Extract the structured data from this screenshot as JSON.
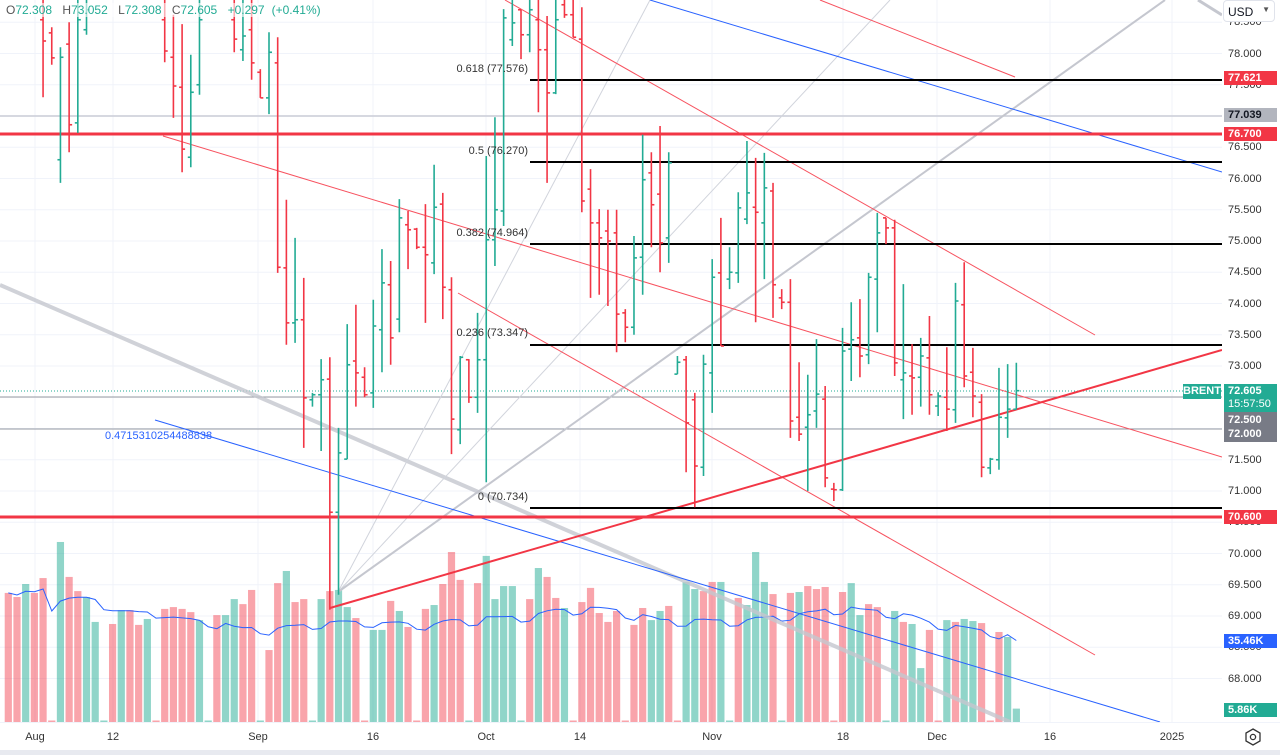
{
  "header": {
    "o_label": "O",
    "o": "72.308",
    "h_label": "H",
    "h": "73.052",
    "l_label": "L",
    "l": "72.308",
    "c_label": "C",
    "c": "72.605",
    "change": "+0.297",
    "change_pct": "(+0.41%)"
  },
  "currency": "USD",
  "symbol_tag": "BRENT",
  "price_tags": {
    "fib_top": "77.621",
    "gray_line": "77.039",
    "resistance": "76.700",
    "last_price": "72.605",
    "countdown": "15:57:50",
    "line_a": "72.500",
    "line_b": "72.000",
    "support": "70.600",
    "volume_ma": "35.46K",
    "volume": "5.86K"
  },
  "fib_labels": [
    "0.618 (77.576)",
    "0.5 (76.270)",
    "0.382 (74.964)",
    "0.236 (73.347)",
    "0 (70.734)"
  ],
  "measure_note": "0.4715310254488838",
  "colors": {
    "up": "#22ab94",
    "down": "#f23645",
    "vol_up": "rgba(34,171,148,0.5)",
    "vol_down": "rgba(242,54,69,0.45)",
    "ma": "#2962ff",
    "level": "#f23645"
  },
  "chart_data": {
    "type": "ohlc",
    "title": "BRENT",
    "ylim": [
      67.6,
      78.86
    ],
    "y_ticks": [
      "78.500",
      "78.000",
      "77.500",
      "77.000",
      "76.500",
      "76.000",
      "75.500",
      "75.000",
      "74.500",
      "74.000",
      "73.500",
      "73.000",
      "72.500",
      "72.000",
      "71.500",
      "71.000",
      "70.500",
      "70.000",
      "69.500",
      "69.000",
      "68.500",
      "68.000"
    ],
    "x_ticks": [
      "Aug",
      "12",
      "Sep",
      "16",
      "Oct",
      "14",
      "Nov",
      "18",
      "Dec",
      "16",
      "2025"
    ],
    "levels": {
      "resistance": 76.7,
      "support": 70.6,
      "gray": 77.039,
      "line_a": 72.5,
      "line_b": 72.0,
      "last": 72.605
    },
    "fibonacci": [
      {
        "ratio": 0.618,
        "price": 77.576
      },
      {
        "ratio": 0.5,
        "price": 76.27
      },
      {
        "ratio": 0.382,
        "price": 74.964
      },
      {
        "ratio": 0.236,
        "price": 73.347
      },
      {
        "ratio": 0,
        "price": 70.734
      }
    ],
    "bar_segments": [
      {
        "start": 4,
        "bars": [
          [
            78.54,
            79.0,
            77.3,
            78.2
          ],
          [
            78.33,
            78.42,
            77.82,
            77.93
          ],
          [
            76.3,
            78.1,
            75.93,
            77.94
          ],
          [
            78.15,
            78.5,
            76.42,
            76.86
          ],
          [
            76.89,
            79.0,
            76.73,
            78.54
          ],
          [
            78.38,
            79.0,
            78.3,
            78.7
          ]
        ]
      },
      {
        "start": 18,
        "bars": [
          [
            78.54,
            79.0,
            77.86,
            78.04
          ],
          [
            77.94,
            78.62,
            76.97,
            77.48
          ],
          [
            77.46,
            78.47,
            76.1,
            76.47
          ],
          [
            76.34,
            77.98,
            76.18,
            77.38
          ],
          [
            77.5,
            79.0,
            77.34,
            78.54
          ]
        ]
      },
      {
        "start": 26,
        "bars": [
          [
            78.54,
            79.0,
            78.02,
            78.23
          ],
          [
            78.06,
            79.0,
            77.88,
            78.28
          ],
          [
            78.38,
            79.0,
            77.58,
            77.85
          ],
          [
            77.7,
            77.75,
            77.29,
            77.29
          ],
          [
            77.29,
            78.34,
            77.03,
            78.02
          ],
          [
            77.85,
            78.26,
            74.49,
            74.58
          ],
          [
            74.57,
            75.66,
            73.34,
            73.69
          ],
          [
            73.69,
            75.05,
            73.37,
            73.74
          ],
          [
            73.74,
            74.41,
            71.69,
            72.49
          ],
          [
            72.46,
            72.57,
            72.35,
            72.54
          ],
          [
            72.54,
            73.11,
            71.64,
            72.78
          ],
          [
            72.79,
            73.14,
            69.1,
            70.66
          ],
          [
            70.66,
            72.01,
            69.34,
            71.61
          ],
          [
            71.51,
            73.67,
            71.51,
            73.02
          ],
          [
            73.08,
            73.98,
            72.35,
            72.89
          ],
          [
            72.82,
            72.98,
            72.5,
            72.54
          ],
          [
            72.57,
            74.06,
            72.33,
            73.64
          ],
          [
            73.58,
            74.87,
            72.9,
            74.33
          ],
          [
            74.3,
            74.68,
            73.02,
            73.45
          ],
          [
            73.75,
            75.67,
            73.54,
            75.37
          ],
          [
            75.26,
            75.48,
            74.55,
            75.18
          ],
          [
            75.19,
            75.21,
            74.87,
            74.9
          ],
          [
            74.9,
            75.59,
            73.69,
            74.78
          ],
          [
            74.65,
            76.22,
            74.47,
            75.54
          ],
          [
            75.59,
            75.77,
            73.75,
            74.26
          ],
          [
            74.22,
            74.42,
            71.59,
            72.15
          ],
          [
            71.98,
            73.16,
            71.75,
            73.14
          ],
          [
            73.1,
            73.11,
            72.41,
            72.5
          ],
          [
            72.5,
            73.85,
            72.25,
            73.1
          ],
          [
            73.1,
            76.36,
            71.14,
            75.02
          ],
          [
            75.02,
            76.98,
            74.6,
            75.5
          ],
          [
            75.48,
            78.71,
            75.24,
            78.57
          ],
          [
            78.22,
            79.0,
            78.12,
            78.49
          ],
          [
            78.7,
            78.7,
            77.91,
            78.3
          ],
          [
            78.3,
            79.0,
            78.02,
            78.7
          ],
          [
            78.54,
            79.0,
            77.06,
            78.06
          ],
          [
            78.06,
            78.6,
            75.93,
            77.37
          ],
          [
            77.37,
            79.0,
            77.35,
            78.54
          ],
          [
            78.78,
            79.0,
            78.57,
            78.62
          ],
          [
            78.62,
            79.0,
            78.26,
            78.26
          ],
          [
            78.23,
            78.74,
            75.46,
            75.64
          ],
          [
            75.83,
            76.15,
            74.09,
            75.29
          ],
          [
            75.29,
            75.51,
            74.14,
            75.05
          ],
          [
            75.16,
            75.5,
            73.96,
            75.0
          ],
          [
            75.13,
            75.5,
            73.22,
            73.83
          ],
          [
            73.85,
            73.91,
            73.38,
            73.62
          ],
          [
            73.62,
            75.08,
            73.5,
            74.73
          ],
          [
            74.74,
            76.7,
            74.14,
            75.98
          ],
          [
            76.09,
            76.42,
            74.9,
            75.58
          ],
          [
            75.75,
            76.84,
            74.5,
            74.97
          ],
          [
            75.05,
            76.42,
            74.65,
            76.25
          ],
          [
            72.87,
            73.16,
            72.87,
            73.06
          ],
          [
            73.1,
            73.16,
            71.3,
            72.09
          ],
          [
            72.46,
            72.57,
            70.74,
            71.4
          ],
          [
            71.38,
            73.18,
            71.24,
            73.03
          ],
          [
            72.89,
            74.71,
            72.25,
            74.42
          ],
          [
            74.49,
            75.37,
            73.32,
            73.32
          ],
          [
            74.39,
            74.9,
            74.23,
            74.5
          ],
          [
            74.49,
            75.78,
            74.33,
            75.53
          ],
          [
            75.35,
            76.6,
            75.27,
            75.77
          ],
          [
            75.54,
            76.33,
            73.7,
            75.46
          ],
          [
            75.29,
            76.41,
            74.39,
            75.85
          ],
          [
            75.8,
            75.93,
            73.77,
            74.3
          ],
          [
            74.09,
            74.23,
            73.91,
            74.02
          ],
          [
            74.02,
            74.39,
            71.85,
            72.12
          ],
          [
            72.18,
            73.06,
            71.8,
            71.91
          ],
          [
            72.02,
            72.86,
            71.0,
            72.22
          ],
          [
            72.28,
            73.43,
            72.01,
            72.55
          ],
          [
            72.47,
            72.68,
            71.06,
            71.21
          ],
          [
            71.03,
            71.13,
            70.84,
            71.02
          ],
          [
            71.02,
            73.61,
            71.0,
            73.24
          ],
          [
            73.27,
            74.02,
            72.76,
            73.42
          ],
          [
            73.45,
            74.07,
            72.82,
            73.16
          ],
          [
            73.18,
            74.49,
            73.03,
            74.42
          ],
          [
            74.39,
            75.45,
            73.54,
            75.13
          ],
          [
            75.37,
            75.37,
            74.95,
            75.21
          ],
          [
            75.21,
            75.34,
            72.84,
            73.05
          ],
          [
            72.78,
            74.31,
            72.15,
            72.89
          ],
          [
            72.84,
            73.35,
            72.22,
            72.81
          ],
          [
            72.82,
            73.45,
            72.35,
            73.16
          ],
          [
            73.13,
            73.8,
            72.22,
            72.54
          ],
          [
            72.36,
            72.58,
            72.2,
            72.52
          ],
          [
            72.5,
            73.3,
            71.96,
            72.31
          ],
          [
            72.3,
            74.33,
            72.09,
            74.04
          ],
          [
            73.98,
            74.66,
            72.66,
            72.84
          ],
          [
            72.9,
            73.29,
            72.18,
            72.52
          ],
          [
            72.42,
            72.55,
            71.22,
            71.38
          ],
          [
            71.37,
            71.53,
            71.27,
            71.51
          ],
          [
            71.5,
            72.97,
            71.34,
            72.18
          ],
          [
            72.17,
            73.03,
            71.85,
            72.31
          ],
          [
            72.308,
            73.052,
            72.308,
            72.605
          ]
        ]
      }
    ],
    "volume_k": [
      56.5,
      54.7,
      60.4,
      56.5,
      63.0,
      0.4,
      78.8,
      63.5,
      57.3,
      54.7,
      43.8,
      0.4,
      42.9,
      49.0,
      49.0,
      42.5,
      45.1,
      0.4,
      49.5,
      50.3,
      49.5,
      48.1,
      44.6,
      0.4,
      46.8,
      46.8,
      53.8,
      51.6,
      57.8,
      0.4,
      31.5,
      60.8,
      66.1,
      52.5,
      53.8,
      0.4,
      53.8,
      57.3,
      57.8,
      50.3,
      45.5,
      0.4,
      40.3,
      40.3,
      53.0,
      48.6,
      41.6,
      0.4,
      49.5,
      51.2,
      60.4,
      74.4,
      62.2,
      0.4,
      60.8,
      72.7,
      53.8,
      59.5,
      59.5,
      0.4,
      53.8,
      67.4,
      63.5,
      54.3,
      49.9,
      0.4,
      52.5,
      58.7,
      47.7,
      43.8,
      48.6,
      0.4,
      42.5,
      49.9,
      44.6,
      48.6,
      50.8,
      0.4,
      61.3,
      58.2,
      57.3,
      61.3,
      61.3,
      0.4,
      54.3,
      51.2,
      74.4,
      61.3,
      56.0,
      0.4,
      56.5,
      56.9,
      59.5,
      58.2,
      59.1,
      0.4,
      56.9,
      60.8,
      46.8,
      51.6,
      50.3,
      0.4,
      48.6,
      43.8,
      42.9,
      23.6,
      40.3,
      0.4,
      44.6,
      43.8,
      45.1,
      44.2,
      43.3,
      0.4,
      39.4,
      37.2,
      5.86
    ],
    "volume_dir": "ddudddudduuududduddddduuduudduddudduuduudduududdduddduduuuuudu",
    "volume_dir_tail": "dduddddddddduudduudduuduuudududdddduudduuduudduduuddduuuuu"
  }
}
